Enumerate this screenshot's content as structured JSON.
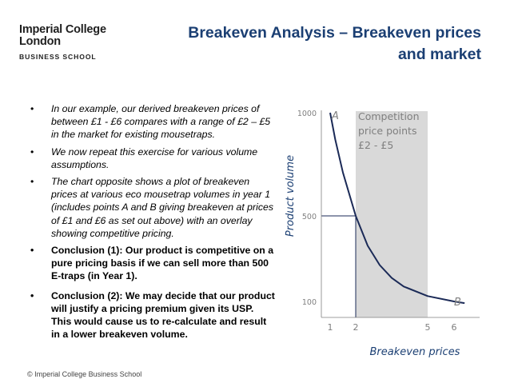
{
  "logo": {
    "line1": "Imperial College",
    "line2": "London",
    "line3": "BUSINESS SCHOOL"
  },
  "title": {
    "line1": "Breakeven Analysis – Breakeven prices",
    "line2": "and market"
  },
  "bullets": [
    "In our example, our derived breakeven prices of between £1 - £6 compares with a range of £2 – £5 in the market for existing mousetraps.",
    "We now repeat this exercise for various volume assumptions.",
    "The chart opposite shows a plot of breakeven prices at various eco mousetrap volumes in year 1 (includes points A and B giving breakeven at prices of £1 and £6 as set out above) with an overlay showing competitive pricing.",
    "Conclusion (1): Our product is competitive on a pure pricing basis if we can sell more than 500 E-traps (in Year 1).",
    "Conclusion (2): We may decide that our product will justify a pricing premium given its USP. This would cause us to re-calculate and result in a lower breakeven volume."
  ],
  "footer": "© Imperial College Business School",
  "chart_data": {
    "type": "line",
    "xlabel": "Breakeven prices",
    "ylabel": "Product volume",
    "x_ticks": [
      "1",
      "2",
      "5",
      "6"
    ],
    "y_ticks": [
      "1000",
      "500",
      "100"
    ],
    "series": [
      {
        "x": [
          1,
          1.2,
          1.5,
          2,
          2.5,
          3,
          3.5,
          4,
          5,
          6,
          6.4
        ],
        "y": [
          1000,
          870,
          710,
          500,
          360,
          270,
          210,
          170,
          125,
          100,
          92
        ]
      }
    ],
    "point_labels": [
      {
        "text": "A",
        "x": 1,
        "y": 1000
      },
      {
        "text": "B",
        "x": 6,
        "y": 100
      }
    ],
    "shaded_region": {
      "x_from": 2,
      "x_to": 5,
      "label_lines": [
        "Competition",
        "price points",
        "£2 - £5"
      ]
    },
    "guide_line": {
      "x": 2,
      "y": 500
    },
    "colors": {
      "curve": "#1b2a57",
      "shade": "#d9d9d9",
      "tick_text": "#7f7f7f",
      "axis_label": "#1b3f73"
    }
  }
}
